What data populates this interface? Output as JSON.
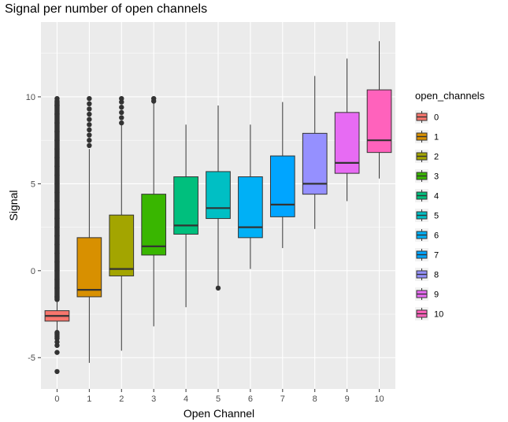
{
  "chart_data": {
    "type": "boxplot",
    "title": "Signal per number of open channels",
    "xlabel": "Open Channel",
    "ylabel": "Signal",
    "ylim": [
      -6.8,
      14.3
    ],
    "y_ticks": [
      -5,
      0,
      5,
      10
    ],
    "grid": true,
    "legend_title": "open_channels",
    "legend_position": "right",
    "categories": [
      "0",
      "1",
      "2",
      "3",
      "4",
      "5",
      "6",
      "7",
      "8",
      "9",
      "10"
    ],
    "colors": [
      "#F8766D",
      "#D89000",
      "#A3A500",
      "#39B600",
      "#00BF7D",
      "#00BFC4",
      "#00B0F6",
      "#00A5FF",
      "#9590FF",
      "#E76BF3",
      "#FF62BC"
    ],
    "boxes": [
      {
        "category": "0",
        "whisker_low": -3.5,
        "q1": -2.9,
        "median": -2.6,
        "q3": -2.3,
        "whisker_high": -1.8
      },
      {
        "category": "1",
        "whisker_low": -5.3,
        "q1": -1.5,
        "median": -1.1,
        "q3": 1.9,
        "whisker_high": 7.0
      },
      {
        "category": "2",
        "whisker_low": -4.6,
        "q1": -0.3,
        "median": 0.1,
        "q3": 3.2,
        "whisker_high": 8.4
      },
      {
        "category": "3",
        "whisker_low": -3.2,
        "q1": 0.9,
        "median": 1.4,
        "q3": 4.4,
        "whisker_high": 9.7
      },
      {
        "category": "4",
        "whisker_low": -2.1,
        "q1": 2.1,
        "median": 2.6,
        "q3": 5.4,
        "whisker_high": 8.4
      },
      {
        "category": "5",
        "whisker_low": -1.0,
        "q1": 3.0,
        "median": 3.6,
        "q3": 5.7,
        "whisker_high": 9.5
      },
      {
        "category": "6",
        "whisker_low": 0.1,
        "q1": 1.9,
        "median": 2.5,
        "q3": 5.4,
        "whisker_high": 8.4
      },
      {
        "category": "7",
        "whisker_low": 1.3,
        "q1": 3.1,
        "median": 3.8,
        "q3": 6.6,
        "whisker_high": 9.7
      },
      {
        "category": "8",
        "whisker_low": 2.4,
        "q1": 4.4,
        "median": 5.0,
        "q3": 7.9,
        "whisker_high": 11.2
      },
      {
        "category": "9",
        "whisker_low": 4.0,
        "q1": 5.6,
        "median": 6.2,
        "q3": 9.1,
        "whisker_high": 12.2
      },
      {
        "category": "10",
        "whisker_low": 5.3,
        "q1": 6.8,
        "median": 7.5,
        "q3": 10.4,
        "whisker_high": 13.2
      }
    ],
    "outliers": [
      {
        "category": "0",
        "values": [
          -5.8,
          -4.7,
          -4.3,
          -4.1,
          -3.9,
          -3.8,
          -3.7,
          -3.6,
          -3.55,
          -1.5,
          -1.0,
          -0.5,
          0.0,
          0.5,
          1.0,
          1.5,
          2.0,
          2.5,
          3.0,
          3.5,
          4.0,
          4.5,
          5.0,
          5.5,
          6.0,
          6.5,
          7.0,
          7.5,
          8.0,
          8.5,
          9.0,
          9.5,
          9.9
        ]
      },
      {
        "category": "1",
        "values": [
          7.2,
          7.5,
          7.8,
          8.1,
          8.4,
          8.7,
          9.0,
          9.3,
          9.6,
          9.9
        ]
      },
      {
        "category": "2",
        "values": [
          8.5,
          8.8,
          9.1,
          9.4,
          9.7,
          9.9
        ]
      },
      {
        "category": "3",
        "values": [
          9.75,
          9.9
        ]
      },
      {
        "category": "5",
        "values": [
          -1.0
        ]
      }
    ]
  }
}
